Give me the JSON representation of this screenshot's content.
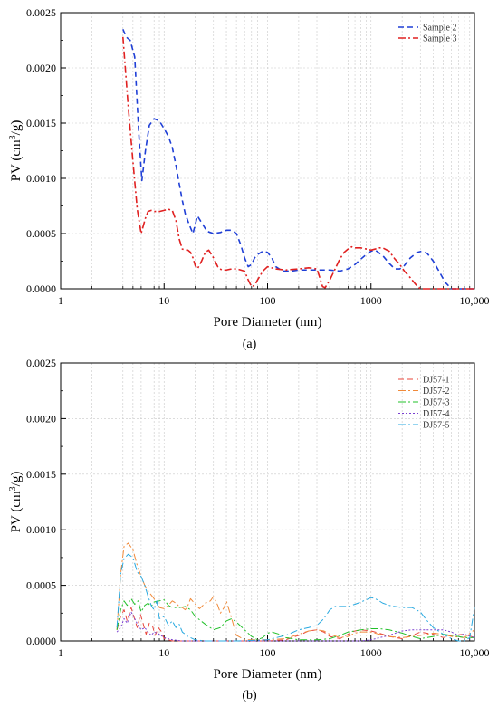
{
  "chart_data": [
    {
      "type": "line",
      "panel_label": "(a)",
      "xlabel": "Pore Diameter (nm)",
      "ylabel_parts": [
        "PV (cm",
        "3",
        "/g)"
      ],
      "xscale": "log",
      "xlim": [
        1,
        10000
      ],
      "ylim": [
        0,
        0.0025
      ],
      "xticks": [
        1,
        10,
        100,
        1000,
        10000
      ],
      "xtick_labels": [
        "1",
        "10",
        "100",
        "1000",
        "10,000"
      ],
      "yticks": [
        0,
        0.0005,
        0.001,
        0.0015,
        0.002,
        0.0025
      ],
      "ytick_labels": [
        "0.0000",
        "0.0005",
        "0.0010",
        "0.0015",
        "0.0020",
        "0.0025"
      ],
      "grid": true,
      "legend_position": "top-right",
      "series": [
        {
          "name": "Sample 2",
          "color": "#1f3fd6",
          "dash": "dashed",
          "x": [
            4,
            4.3,
            4.7,
            5.2,
            5.7,
            6.1,
            6.6,
            7.2,
            8,
            9,
            10,
            11,
            12,
            13,
            14,
            15,
            16,
            17.5,
            19,
            21,
            23,
            26,
            30,
            35,
            40,
            45,
            50,
            55,
            60,
            65,
            70,
            75,
            80,
            90,
            100,
            110,
            120,
            140,
            170,
            200,
            250,
            300,
            400,
            500,
            600,
            700,
            800,
            900,
            1000,
            1100,
            1300,
            1500,
            1700,
            1900,
            2100,
            2400,
            2800,
            3100,
            3500,
            4000,
            4600,
            5200,
            6000,
            7000,
            8000,
            9000,
            10000
          ],
          "y": [
            0.00235,
            0.00228,
            0.00225,
            0.0021,
            0.0014,
            0.00098,
            0.00125,
            0.00148,
            0.00154,
            0.00152,
            0.00145,
            0.00138,
            0.00128,
            0.00112,
            0.00095,
            0.0008,
            0.00068,
            0.00058,
            0.0005,
            0.00066,
            0.0006,
            0.00052,
            0.0005,
            0.00051,
            0.00053,
            0.00053,
            0.0005,
            0.0004,
            0.00028,
            0.0002,
            0.00022,
            0.00028,
            0.00031,
            0.00034,
            0.00033,
            0.00028,
            0.0002,
            0.00016,
            0.00016,
            0.00017,
            0.00017,
            0.00017,
            0.00017,
            0.00016,
            0.00018,
            0.00022,
            0.00027,
            0.00031,
            0.00034,
            0.00035,
            0.0003,
            0.00023,
            0.00018,
            0.00018,
            0.00021,
            0.00028,
            0.00033,
            0.00034,
            0.00032,
            0.00025,
            0.00015,
            6e-05,
            0,
            0,
            0,
            0,
            0
          ]
        },
        {
          "name": "Sample 3",
          "color": "#e02020",
          "dash": "dashdot",
          "x": [
            4,
            4.5,
            5,
            5.5,
            6,
            6.6,
            7,
            7.5,
            8,
            9,
            10,
            11,
            12,
            13,
            14,
            15,
            16,
            17,
            18,
            19,
            20,
            21,
            23,
            25,
            27,
            30,
            33,
            36,
            40,
            45,
            50,
            55,
            60,
            65,
            70,
            75,
            80,
            90,
            100,
            120,
            150,
            200,
            250,
            300,
            320,
            340,
            360,
            400,
            450,
            500,
            550,
            600,
            650,
            700,
            800,
            900,
            1000,
            1100,
            1200,
            1300,
            1500,
            1700,
            1900,
            2100,
            2400,
            2700,
            3000,
            4000,
            5000,
            7000,
            10000
          ],
          "y": [
            0.00228,
            0.00165,
            0.00115,
            0.00072,
            0.0005,
            0.00064,
            0.0007,
            0.00071,
            0.0007,
            0.0007,
            0.00071,
            0.00072,
            0.00071,
            0.00062,
            0.00045,
            0.00036,
            0.00035,
            0.00035,
            0.00033,
            0.00028,
            0.00021,
            0.00018,
            0.00025,
            0.00033,
            0.00035,
            0.00028,
            0.0002,
            0.00017,
            0.00017,
            0.00018,
            0.00018,
            0.00017,
            0.00016,
            8e-05,
            2e-05,
            3e-05,
            8e-05,
            0.00016,
            0.0002,
            0.00018,
            0.00017,
            0.00018,
            0.00019,
            0.00018,
            0.0001,
            2e-05,
            1e-05,
            8e-05,
            0.00018,
            0.00027,
            0.00033,
            0.00036,
            0.00038,
            0.00037,
            0.00037,
            0.00036,
            0.00035,
            0.00036,
            0.00037,
            0.00037,
            0.00034,
            0.00027,
            0.00022,
            0.00016,
            0.0001,
            4e-05,
            0,
            0,
            0,
            0,
            0
          ]
        }
      ]
    },
    {
      "type": "line",
      "panel_label": "(b)",
      "xlabel": "Pore Diameter (nm)",
      "ylabel_parts": [
        "PV (cm",
        "3",
        "/g)"
      ],
      "xscale": "log",
      "xlim": [
        1,
        10000
      ],
      "ylim": [
        0,
        0.0025
      ],
      "xticks": [
        1,
        10,
        100,
        1000,
        10000
      ],
      "xtick_labels": [
        "1",
        "10",
        "100",
        "1000",
        "10,000"
      ],
      "yticks": [
        0,
        0.0005,
        0.001,
        0.0015,
        0.002,
        0.0025
      ],
      "ytick_labels": [
        "0.0000",
        "0.0005",
        "0.0010",
        "0.0015",
        "0.0020",
        "0.0025"
      ],
      "grid": true,
      "legend_position": "top-right",
      "series": [
        {
          "name": "DJ57-1",
          "color": "#e8443a",
          "dash": "dashed",
          "x": [
            3.5,
            3.8,
            4.1,
            4.4,
            4.8,
            5.1,
            5.5,
            5.9,
            6.3,
            6.7,
            7.2,
            7.7,
            8.2,
            8.8,
            9.5,
            10,
            11,
            12,
            14,
            16,
            20,
            30,
            50,
            100,
            150,
            200,
            250,
            300,
            350,
            400,
            500,
            600,
            700,
            800,
            1000,
            1200,
            1500,
            2000,
            2500,
            3000,
            4000,
            5000,
            6000,
            8000,
            10000
          ],
          "y": [
            0.0001,
            0.00022,
            0.00028,
            0.00018,
            0.0003,
            0.00022,
            0.00012,
            0.00024,
            0.00015,
            6e-05,
            0.00016,
            0.00014,
            5e-05,
            0.00012,
            8e-05,
            2e-05,
            1e-05,
            0,
            0,
            0,
            0,
            0,
            0,
            0,
            1e-05,
            5e-05,
            9e-05,
            0.0001,
            8e-05,
            4e-05,
            2e-05,
            6e-05,
            9e-05,
            0.0001,
            9e-05,
            7e-05,
            4e-05,
            2e-05,
            5e-05,
            8e-05,
            6e-05,
            3e-05,
            5e-05,
            6e-05,
            3e-05
          ]
        },
        {
          "name": "DJ57-2",
          "color": "#f08a3a",
          "dash": "dashdot",
          "x": [
            3.5,
            3.8,
            4.1,
            4.5,
            5,
            5.5,
            6,
            6.5,
            7,
            8,
            9,
            10,
            11,
            12,
            13,
            14,
            15,
            16,
            17,
            18,
            20,
            22,
            25,
            28,
            30,
            33,
            35,
            38,
            40,
            45,
            50,
            60,
            80,
            100,
            150,
            200,
            250,
            300,
            350,
            400,
            500,
            600,
            700,
            800,
            1000,
            1200,
            1500,
            2000,
            2500,
            3000,
            4000,
            5000,
            6000,
            8000,
            10000
          ],
          "y": [
            0.0001,
            0.0006,
            0.00085,
            0.00088,
            0.00082,
            0.00068,
            0.00058,
            0.0005,
            0.00045,
            0.00038,
            0.0003,
            0.00029,
            0.00032,
            0.00036,
            0.00034,
            0.00031,
            0.0003,
            0.00028,
            0.00032,
            0.00038,
            0.00033,
            0.00029,
            0.00034,
            0.00036,
            0.0004,
            0.00032,
            0.00025,
            0.0003,
            0.00036,
            0.0002,
            5e-05,
            1e-05,
            1e-05,
            1e-05,
            2e-05,
            6e-05,
            9e-05,
            0.0001,
            9e-05,
            6e-05,
            3e-05,
            4e-05,
            7e-05,
            8e-05,
            8e-05,
            6e-05,
            4e-05,
            3e-05,
            4e-05,
            5e-05,
            7e-05,
            6e-05,
            4e-05,
            3e-05,
            0.0001
          ]
        },
        {
          "name": "DJ57-3",
          "color": "#22c02a",
          "dash": "dashdot",
          "x": [
            3.5,
            3.8,
            4.1,
            4.4,
            4.8,
            5.2,
            5.6,
            6,
            6.5,
            7,
            7.5,
            8,
            9,
            10,
            11,
            12,
            14,
            16,
            18,
            20,
            25,
            30,
            35,
            40,
            45,
            50,
            60,
            70,
            80,
            90,
            100,
            110,
            130,
            150,
            200,
            300,
            400,
            500,
            600,
            700,
            800,
            1000,
            1200,
            1500,
            2000,
            2500,
            3000,
            4000,
            5000,
            6000,
            8000,
            10000
          ],
          "y": [
            0.0001,
            0.00028,
            0.00036,
            0.00032,
            0.00038,
            0.00033,
            0.00036,
            0.00026,
            0.00032,
            0.00034,
            0.00031,
            0.00035,
            0.00036,
            0.00037,
            0.00032,
            0.0003,
            0.0003,
            0.00031,
            0.00028,
            0.00022,
            0.00015,
            0.0001,
            0.00012,
            0.00018,
            0.0002,
            0.00017,
            0.0001,
            4e-05,
            1e-05,
            3e-05,
            7e-05,
            8e-05,
            6e-05,
            3e-05,
            1e-05,
            1e-05,
            2e-05,
            5e-05,
            8e-05,
            9e-05,
            0.0001,
            0.00011,
            0.00011,
            0.0001,
            7e-05,
            4e-05,
            2e-05,
            4e-05,
            6e-05,
            5e-05,
            3e-05,
            3e-05
          ]
        },
        {
          "name": "DJ57-4",
          "color": "#7a3fd0",
          "dash": "dotted",
          "x": [
            3.5,
            3.8,
            4.1,
            4.4,
            4.8,
            5.2,
            5.6,
            6,
            6.5,
            7,
            7.5,
            8,
            9,
            10,
            12,
            15,
            20,
            30,
            50,
            100,
            200,
            400,
            800,
            1000,
            1500,
            2000,
            2500,
            3000,
            4000,
            5000,
            6000,
            7000,
            8000,
            10000
          ],
          "y": [
            8e-05,
            0.00012,
            0.0002,
            0.00016,
            0.00026,
            0.0002,
            0.00014,
            0.0001,
            0.00012,
            8e-05,
            5e-05,
            8e-05,
            6e-05,
            3e-05,
            1e-05,
            0,
            0,
            0,
            0,
            0,
            0,
            0,
            0,
            1e-05,
            5e-05,
            9e-05,
            0.0001,
            0.0001,
            0.0001,
            0.0001,
            8e-05,
            5e-05,
            6e-05,
            3e-05
          ]
        },
        {
          "name": "DJ57-5",
          "color": "#29a9e0",
          "dash": "dashdot",
          "x": [
            3.5,
            3.8,
            4.1,
            4.5,
            5,
            5.5,
            6,
            6.5,
            7,
            7.5,
            8,
            8.5,
            9,
            10,
            11,
            12,
            13,
            14,
            15,
            17,
            20,
            25,
            30,
            50,
            100,
            150,
            200,
            250,
            300,
            350,
            400,
            450,
            500,
            600,
            700,
            800,
            900,
            1000,
            1100,
            1300,
            1500,
            1700,
            2000,
            2500,
            3000,
            3500,
            4000,
            5000,
            6000,
            7000,
            8000,
            9000,
            10000
          ],
          "y": [
            0.00012,
            0.0006,
            0.00074,
            0.00078,
            0.00075,
            0.00062,
            0.00058,
            0.0005,
            0.0004,
            0.00032,
            0.00028,
            0.00036,
            0.0002,
            0.00022,
            0.00014,
            0.00018,
            0.00012,
            0.00015,
            8e-05,
            4e-05,
            1e-05,
            0,
            0,
            0,
            1e-05,
            5e-05,
            0.0001,
            0.00012,
            0.00014,
            0.0002,
            0.00028,
            0.00031,
            0.00031,
            0.00031,
            0.00033,
            0.00035,
            0.00037,
            0.00039,
            0.00038,
            0.00034,
            0.00032,
            0.00031,
            0.0003,
            0.0003,
            0.00026,
            0.00018,
            0.00012,
            6e-05,
            2e-05,
            0,
            0,
            3e-05,
            0.0003
          ]
        }
      ]
    }
  ]
}
